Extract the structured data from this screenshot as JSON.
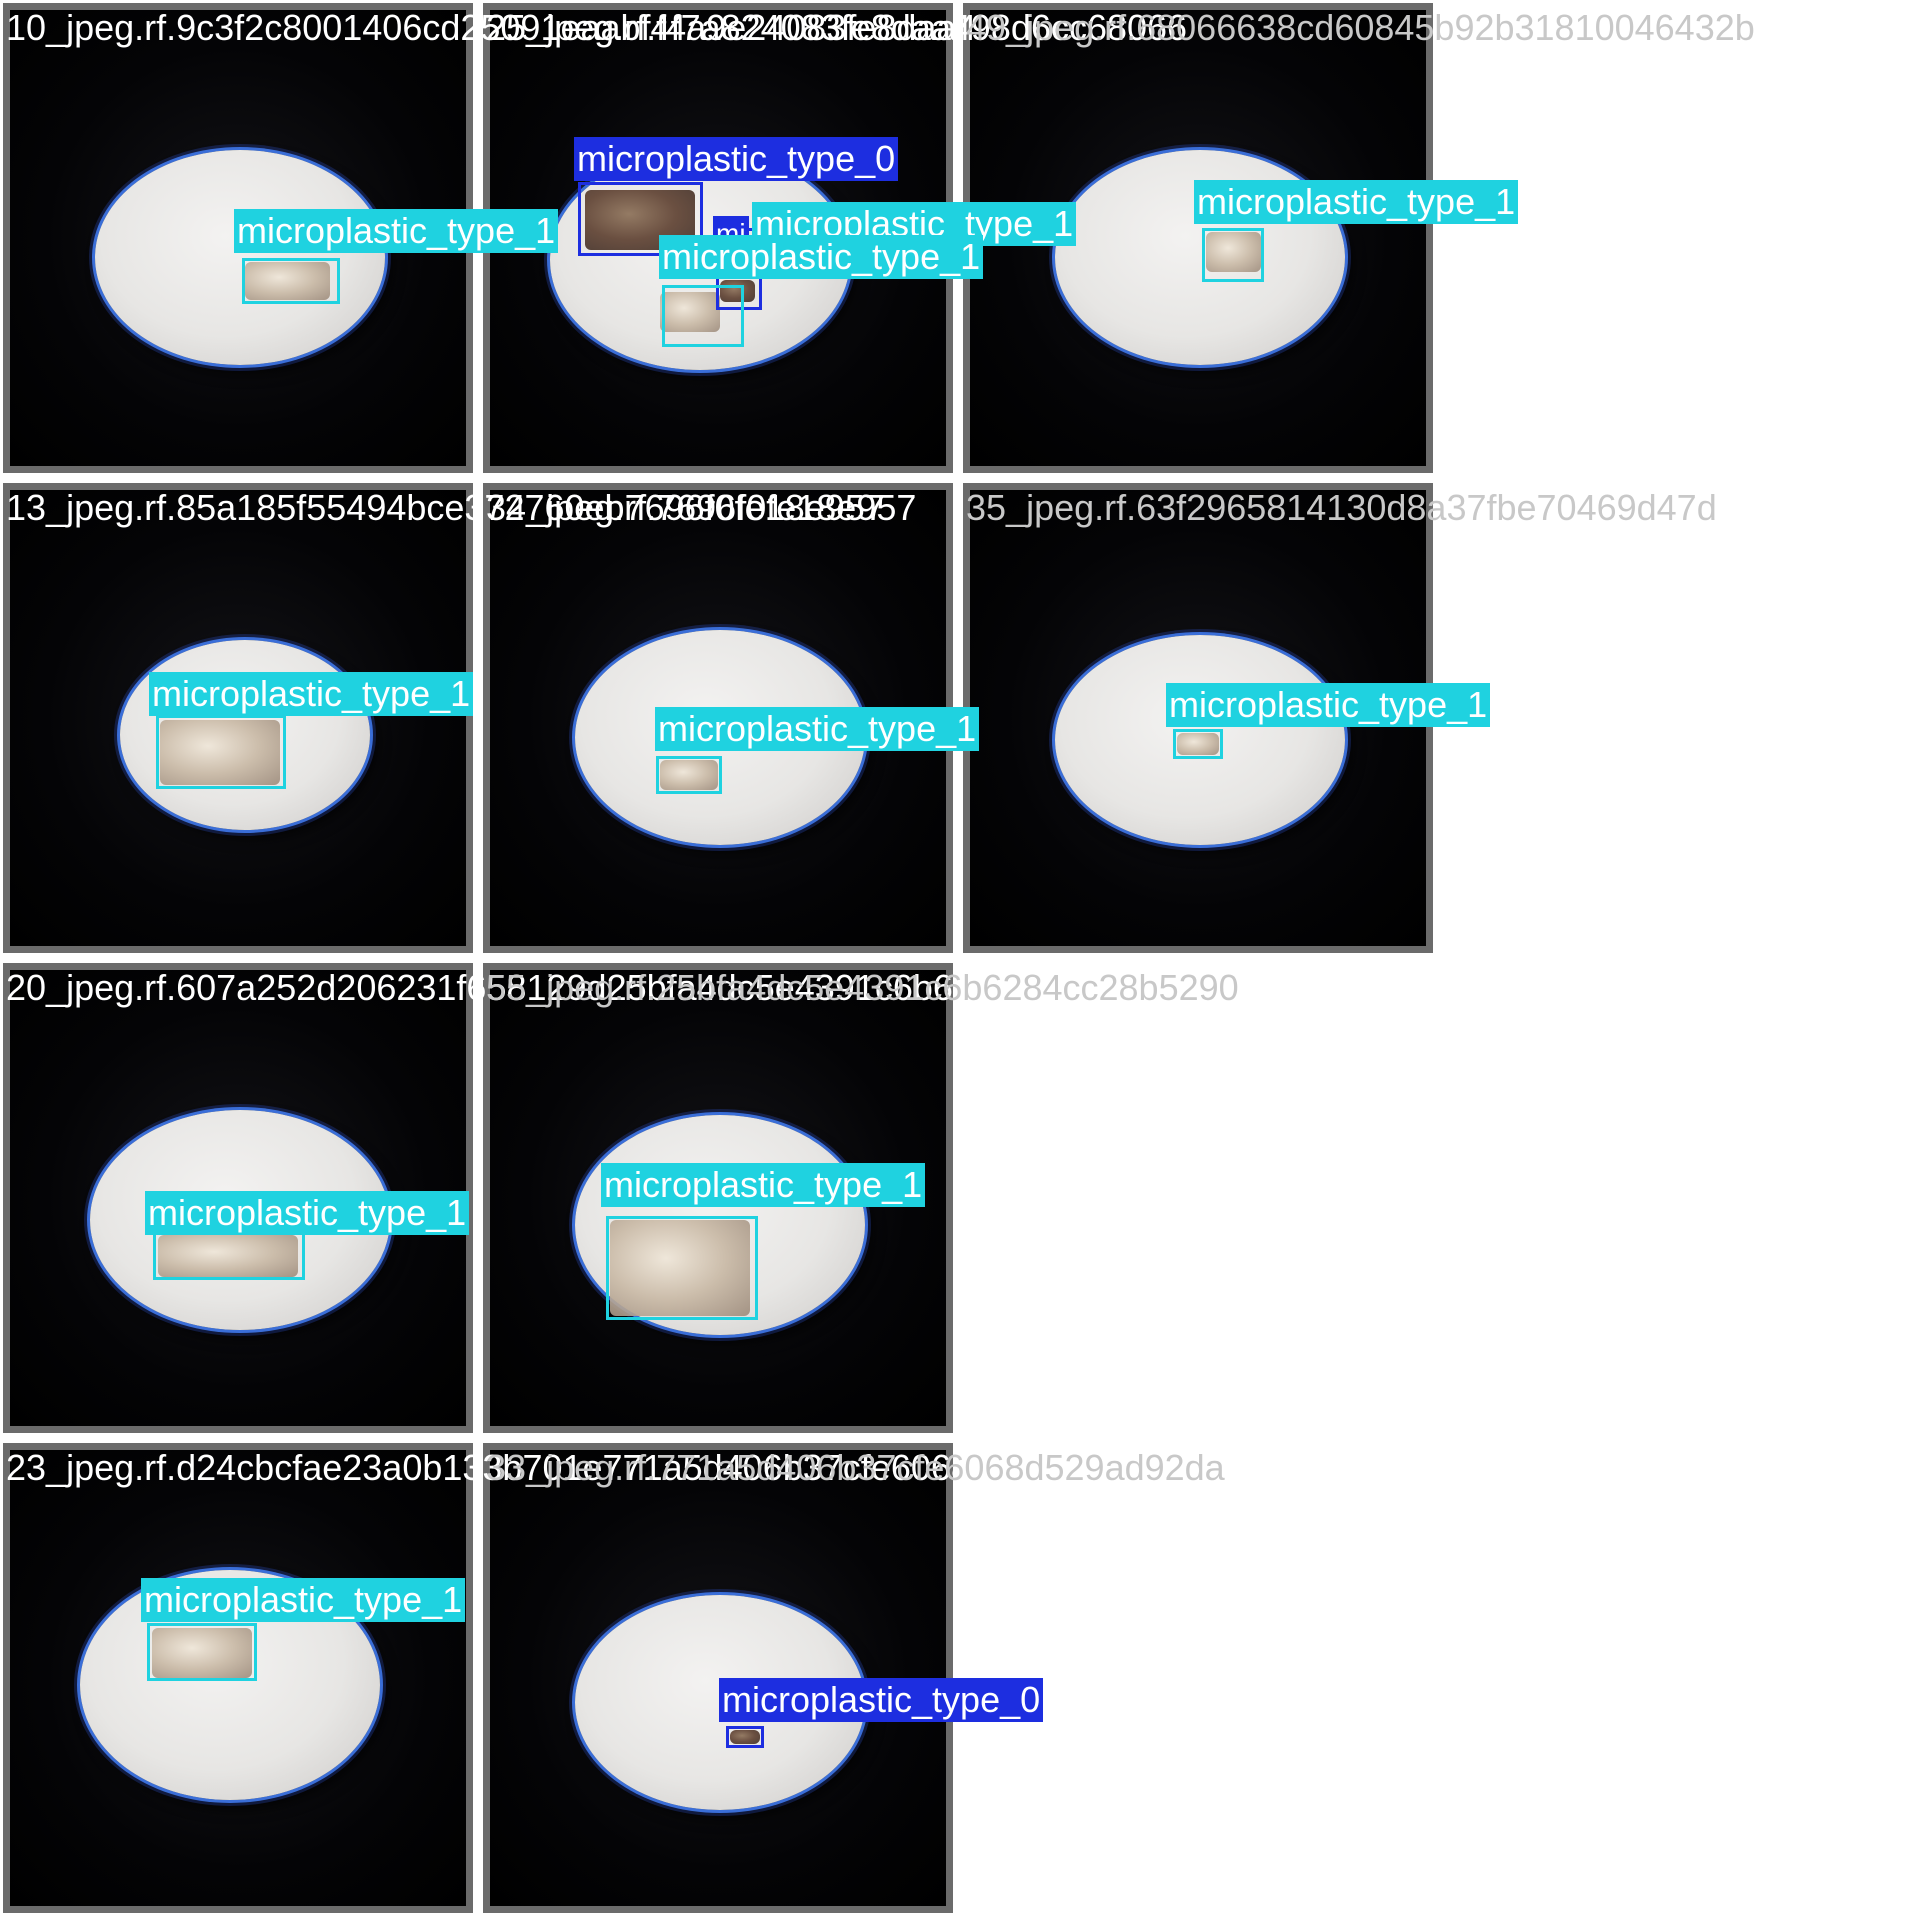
{
  "tiles": [
    {
      "filename": "10_jpeg.rf.9c3f2c8001406cd25091eaabf4f7a824083fe8daa498d6cc68066"
    },
    {
      "filename": "25_jpeg.rf.f4a9e24083fe8daa4"
    },
    {
      "filename": "49_jpeg.rf.68066638cd60845b92b31810046432b"
    },
    {
      "filename": "13_jpeg.rf.85a185f55494bce372760eb7696f0fe18e957"
    },
    {
      "filename": "34_jpeg.rf.7696f0fe18e957"
    },
    {
      "filename": "35_jpeg.rf.63f2965814130d8a37fbe70469d47d"
    },
    {
      "filename": "20_jpeg.rf.607a252d206231f658129d25bfa4dc5e4391c6b6284cc28b5290"
    },
    {
      "filename": "55_jpeg.rf.25bfa4dc5e4391c6b6284cc28b5290"
    },
    {
      "filename": "23_jpeg.rf.d24cbcfae23a0b133b701e771a5d406b37cfe6068d529ad92da"
    },
    {
      "filename": "33_jpeg.rf.771a5d406b37cfe6068d529ad92da"
    }
  ],
  "detections": [
    {
      "tile": 0,
      "label": "microplastic_type_1",
      "class": 1
    },
    {
      "tile": 1,
      "label": "microplastic_type_0",
      "class": 0
    },
    {
      "tile": 1,
      "label": "mi",
      "class": 0
    },
    {
      "tile": 1,
      "label": "microplastic_type_1",
      "class": 1
    },
    {
      "tile": 1,
      "label": "microplastic_type_1",
      "class": 1
    },
    {
      "tile": 2,
      "label": "microplastic_type_1",
      "class": 1
    },
    {
      "tile": 3,
      "label": "microplastic_type_1",
      "class": 1
    },
    {
      "tile": 4,
      "label": "microplastic_type_1",
      "class": 1
    },
    {
      "tile": 5,
      "label": "microplastic_type_1",
      "class": 1
    },
    {
      "tile": 6,
      "label": "microplastic_type_1",
      "class": 1
    },
    {
      "tile": 7,
      "label": "microplastic_type_1",
      "class": 1
    },
    {
      "tile": 8,
      "label": "microplastic_type_1",
      "class": 1
    },
    {
      "tile": 9,
      "label": "microplastic_type_0",
      "class": 0
    }
  ],
  "colors": {
    "type_1": "#1fd2e0",
    "type_0": "#1d2ee0",
    "tile_border": "#6b6b6b"
  }
}
